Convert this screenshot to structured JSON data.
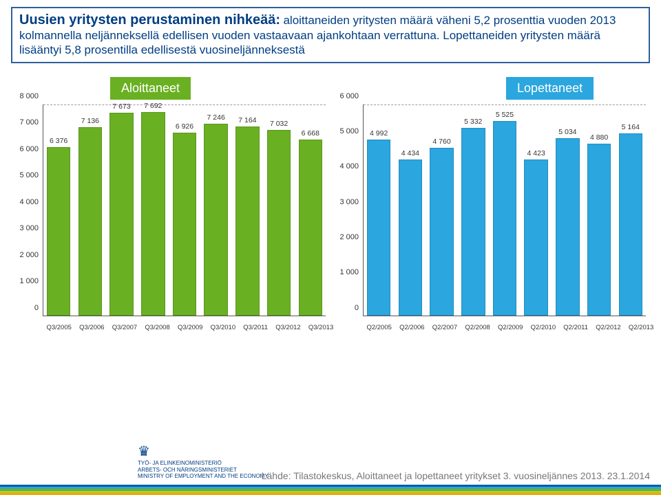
{
  "summary": {
    "title": "Uusien yritysten perustaminen nihkeää:",
    "body": "aloittaneiden yritysten määrä väheni 5,2 prosenttia vuoden 2013 kolmannella neljänneksellä edellisen vuoden vastaavaan ajankohtaan verrattuna. Lopettaneiden yritysten määrä lisääntyi 5,8 prosentilla edellisestä vuosineljänneksestä",
    "title_color": "#003d82",
    "border_color": "#2e5f9e",
    "title_fontsize": 20,
    "body_fontsize": 17
  },
  "chart_left": {
    "type": "bar",
    "legend_label": "Aloittaneet",
    "legend_bg": "#6ab023",
    "legend_text_color": "#ffffff",
    "bar_color": "#6ab023",
    "categories": [
      "Q3/2005",
      "Q3/2006",
      "Q3/2007",
      "Q3/2008",
      "Q3/2009",
      "Q3/2010",
      "Q3/2011",
      "Q3/2012",
      "Q3/2013"
    ],
    "values": [
      6376,
      7136,
      7673,
      7692,
      6926,
      7246,
      7164,
      7032,
      6668
    ],
    "ylim": [
      0,
      8000
    ],
    "ytick_step": 1000,
    "label_fontsize": 10.5,
    "grid_color": "#999999"
  },
  "chart_right": {
    "type": "bar",
    "legend_label": "Lopettaneet",
    "legend_bg": "#2ba6de",
    "legend_text_color": "#ffffff",
    "bar_color": "#2ba6de",
    "categories": [
      "Q2/2005",
      "Q2/2006",
      "Q2/2007",
      "Q2/2008",
      "Q2/2009",
      "Q2/2010",
      "Q2/2011",
      "Q2/2012",
      "Q2/2013"
    ],
    "values": [
      4992,
      4434,
      4760,
      5332,
      5525,
      4423,
      5034,
      4880,
      5164
    ],
    "ylim": [
      0,
      6000
    ],
    "ytick_step": 1000,
    "label_fontsize": 10.5,
    "grid_color": "#999999"
  },
  "footer": {
    "logo_lines": [
      "TYÖ- JA ELINKEINOMINISTERIÖ",
      "ARBETS- OCH NÄRINGSMINISTERIET",
      "MINISTRY OF EMPLOYMENT AND THE ECONOMY"
    ],
    "source": "Lähde: Tilastokeskus, Aloittaneet ja lopettaneet yritykset 3. vuosineljännes 2013. 23.1.2014",
    "stripe_colors": [
      "#f7a600",
      "#a6ce39",
      "#6ab023",
      "#2ba6de",
      "#005fa3"
    ]
  }
}
